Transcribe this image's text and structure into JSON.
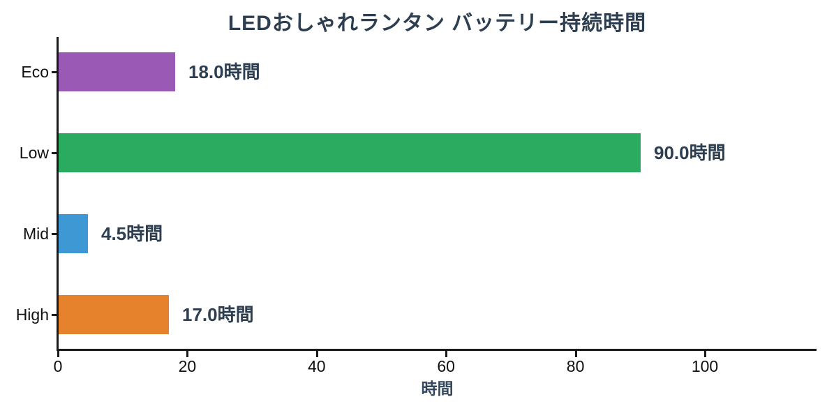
{
  "chart_data": {
    "type": "bar",
    "orientation": "horizontal",
    "title": "LEDおしゃれランタン バッテリー持続時間",
    "categories": [
      "Eco",
      "Low",
      "Mid",
      "High"
    ],
    "values": [
      18.0,
      90.0,
      4.5,
      17.0
    ],
    "value_labels": [
      "18.0時間",
      "90.0時間",
      "4.5時間",
      "17.0時間"
    ],
    "bar_colors": [
      "#9b59b6",
      "#2bab60",
      "#3d98d3",
      "#e6822b"
    ],
    "xlabel": "時間",
    "x_ticks": [
      0,
      20,
      40,
      60,
      80,
      100
    ],
    "xlim": [
      0,
      117
    ],
    "grid": false,
    "legend": null,
    "colors": {
      "title": "#2c3e50",
      "value_label": "#2c3e50",
      "axis": "#1a1a1a",
      "tick_label": "#111111",
      "xlabel": "#34495e",
      "background": "#ffffff"
    }
  }
}
